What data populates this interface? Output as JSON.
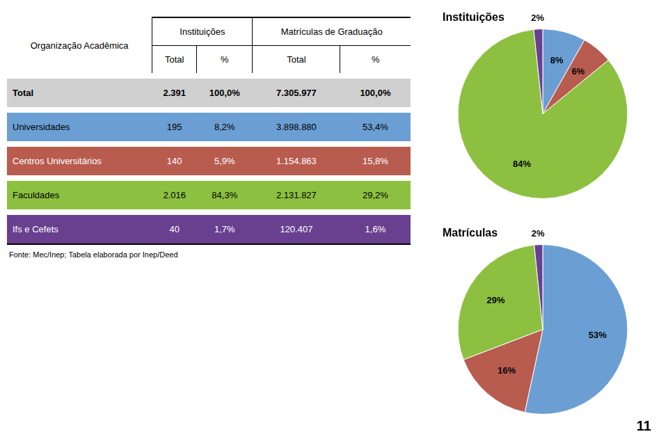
{
  "chart_data": [
    {
      "type": "table",
      "columns": [
        "Organização Acadêmica",
        "Instituições",
        "Matrículas de Graduação"
      ],
      "sub_headers": [
        "Total",
        "%",
        "Total",
        "%"
      ],
      "rows": [
        [
          "Total",
          "2.391",
          "100,0%",
          "7.305.977",
          "100,0%"
        ],
        [
          "Universidades",
          "195",
          "8,2%",
          "3.898.880",
          "53,4%"
        ],
        [
          "Centros Universitários",
          "140",
          "5,9%",
          "1.154.863",
          "15,8%"
        ],
        [
          "Faculdades",
          "2.016",
          "84,3%",
          "2.131.827",
          "29,2%"
        ],
        [
          "Ifs e Cefets",
          "40",
          "1,7%",
          "120.407",
          "1,6%"
        ]
      ],
      "colors": [
        "#d0d0d0",
        "#6b9fd4",
        "#b85c50",
        "#8dc040",
        "#694090"
      ],
      "annotations": [
        "Fonte: Mec/Inep; Tabela elaborada por Inep/Deed",
        "11"
      ]
    },
    {
      "type": "pie",
      "title": "Instituições",
      "values": [
        8.2,
        5.9,
        84.3,
        1.7
      ],
      "value_labels": [
        "8%",
        "6%",
        "84%",
        "2%"
      ],
      "colors": [
        "#6b9fd4",
        "#b85c50",
        "#8dc040",
        "#694090"
      ],
      "data_labels": true
    },
    {
      "type": "pie",
      "title": "Matrículas",
      "values": [
        53.4,
        15.8,
        29.2,
        1.6
      ],
      "value_labels": [
        "53%",
        "16%",
        "29%",
        "2%"
      ],
      "colors": [
        "#6b9fd4",
        "#b85c50",
        "#8dc040",
        "#694090"
      ],
      "data_labels": true
    }
  ]
}
